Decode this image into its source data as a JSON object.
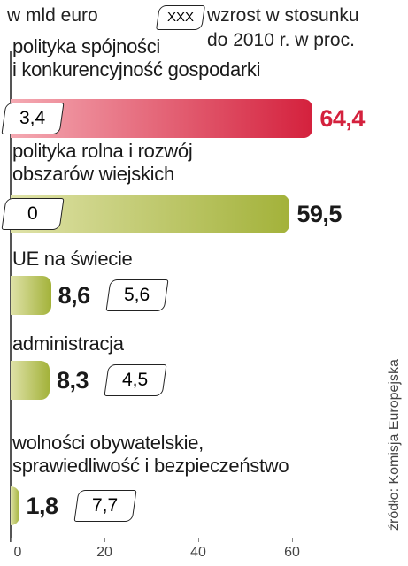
{
  "chart_data": {
    "type": "bar",
    "orientation": "horizontal",
    "unit": "w mld euro",
    "legend_box": "XXX",
    "legend_note": "wzrost w stosunku\ndo 2010 r. w proc.",
    "source": "źródło: Komisja Europejska",
    "categories": [
      "polityka spójności\ni konkurencyjność gospodarki",
      "polityka rolna i rozwój\nobszarów wiejskich",
      "UE na świecie",
      "administracja",
      "wolności obywatelskie,\nsprawiedliwość i bezpieczeństwo"
    ],
    "values": [
      64.4,
      59.5,
      8.6,
      8.3,
      1.8
    ],
    "value_labels": [
      "64,4",
      "59,5",
      "8,6",
      "8,3",
      "1,8"
    ],
    "growth": [
      3.4,
      0,
      5.6,
      4.5,
      7.7
    ],
    "growth_labels": [
      "3,4",
      "0",
      "5,6",
      "4,5",
      "7,7"
    ],
    "colors": [
      "#d4213d",
      "#a3b23a",
      "#a3b23a",
      "#a3b23a",
      "#a3b23a"
    ],
    "value_label_colors": [
      "#d4213d",
      "#1a1a1a",
      "#1a1a1a",
      "#1a1a1a",
      "#1a1a1a"
    ],
    "xlim": [
      0,
      80
    ],
    "xticks": [
      0,
      20,
      40,
      60
    ]
  }
}
